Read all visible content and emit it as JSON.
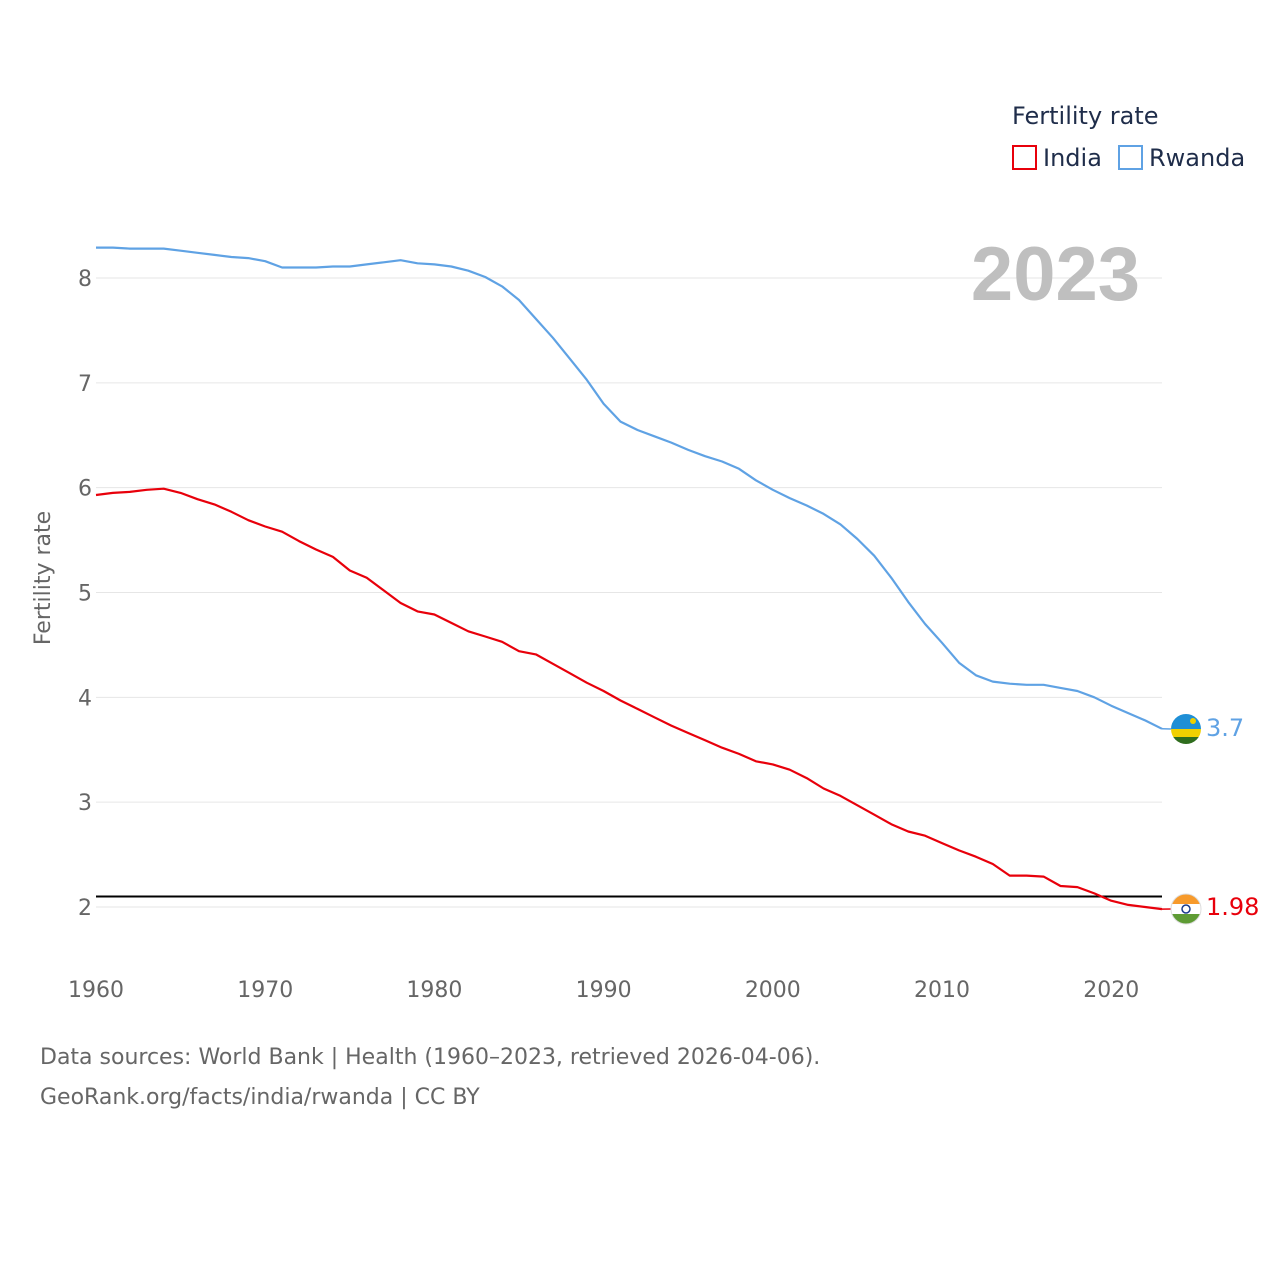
{
  "chart_data": {
    "type": "line",
    "legend_title": "Fertility rate",
    "legend_position": "top-right",
    "year_label": "2023",
    "ylabel": "Fertility rate",
    "xlabel": "",
    "xlim": [
      1960,
      2023
    ],
    "ylim": [
      1.5,
      8.6
    ],
    "x_ticks": [
      1960,
      1970,
      1980,
      1990,
      2000,
      2010,
      2020
    ],
    "y_ticks": [
      2,
      3,
      4,
      5,
      6,
      7,
      8
    ],
    "reference_line": 2.1,
    "grid": true,
    "x": [
      1960,
      1961,
      1962,
      1963,
      1964,
      1965,
      1966,
      1967,
      1968,
      1969,
      1970,
      1971,
      1972,
      1973,
      1974,
      1975,
      1976,
      1977,
      1978,
      1979,
      1980,
      1981,
      1982,
      1983,
      1984,
      1985,
      1986,
      1987,
      1988,
      1989,
      1990,
      1991,
      1992,
      1993,
      1994,
      1995,
      1996,
      1997,
      1998,
      1999,
      2000,
      2001,
      2002,
      2003,
      2004,
      2005,
      2006,
      2007,
      2008,
      2009,
      2010,
      2011,
      2012,
      2013,
      2014,
      2015,
      2016,
      2017,
      2018,
      2019,
      2020,
      2021,
      2022,
      2023
    ],
    "series": [
      {
        "name": "India",
        "color": "#e8000b",
        "flag": "india-flag-icon",
        "end_label": "1.98",
        "values": [
          5.93,
          5.95,
          5.96,
          5.98,
          5.99,
          5.95,
          5.89,
          5.84,
          5.77,
          5.69,
          5.63,
          5.58,
          5.49,
          5.41,
          5.34,
          5.21,
          5.14,
          5.02,
          4.9,
          4.82,
          4.79,
          4.71,
          4.63,
          4.58,
          4.53,
          4.44,
          4.41,
          4.32,
          4.23,
          4.14,
          4.06,
          3.97,
          3.89,
          3.81,
          3.73,
          3.66,
          3.59,
          3.52,
          3.46,
          3.39,
          3.36,
          3.31,
          3.23,
          3.13,
          3.06,
          2.97,
          2.88,
          2.79,
          2.72,
          2.68,
          2.61,
          2.54,
          2.48,
          2.41,
          2.3,
          2.3,
          2.29,
          2.2,
          2.19,
          2.13,
          2.06,
          2.02,
          2.0,
          1.98
        ]
      },
      {
        "name": "Rwanda",
        "color": "#5fa2e4",
        "flag": "rwanda-flag-icon",
        "end_label": "3.7",
        "values": [
          8.29,
          8.29,
          8.28,
          8.28,
          8.28,
          8.26,
          8.24,
          8.22,
          8.2,
          8.19,
          8.16,
          8.1,
          8.1,
          8.1,
          8.11,
          8.11,
          8.13,
          8.15,
          8.17,
          8.14,
          8.13,
          8.11,
          8.07,
          8.01,
          7.92,
          7.79,
          7.61,
          7.43,
          7.23,
          7.03,
          6.8,
          6.63,
          6.55,
          6.49,
          6.43,
          6.36,
          6.3,
          6.25,
          6.18,
          6.07,
          5.98,
          5.9,
          5.83,
          5.75,
          5.65,
          5.51,
          5.35,
          5.14,
          4.91,
          4.7,
          4.52,
          4.33,
          4.21,
          4.15,
          4.13,
          4.12,
          4.12,
          4.09,
          4.06,
          4.0,
          3.92,
          3.85,
          3.78,
          3.7
        ]
      }
    ]
  },
  "footer": {
    "source_line": "Data sources: World Bank | Health (1960–2023, retrieved 2026-04-06).",
    "site_line": "GeoRank.org/facts/india/rwanda | CC BY"
  }
}
